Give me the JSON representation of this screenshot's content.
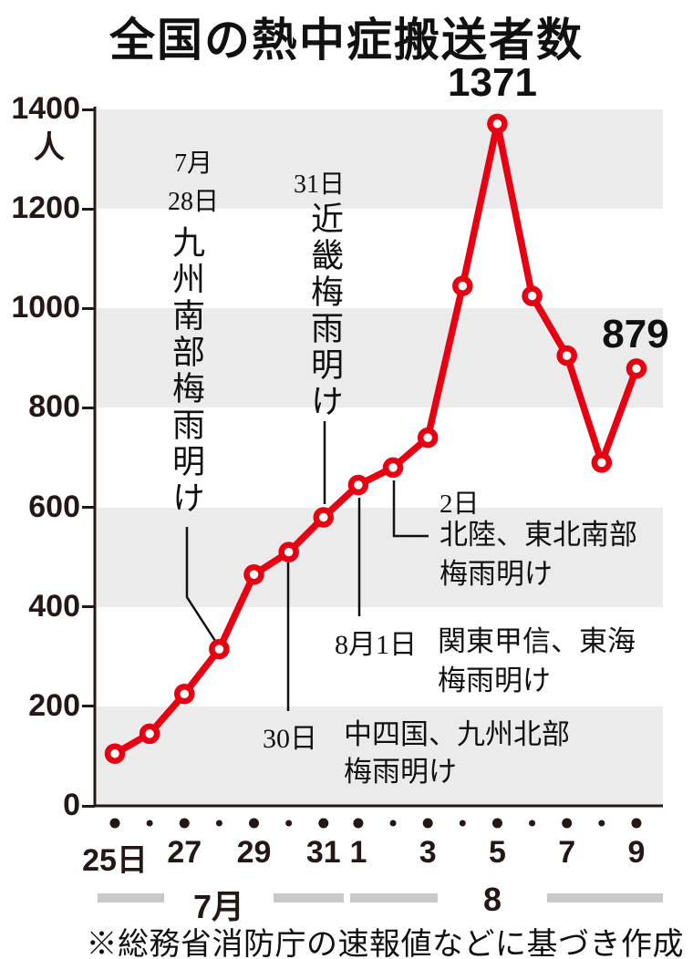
{
  "title": "全国の熱中症搬送者数",
  "source_note": "※総務省消防庁の速報値などに基づき作成",
  "chart_data": {
    "type": "line",
    "title": "全国の熱中症搬送者数",
    "unit": "人",
    "line_color": "#e60012",
    "band_color": "#ebebeb",
    "x": [
      "7/25",
      "7/26",
      "7/27",
      "7/28",
      "7/29",
      "7/30",
      "7/31",
      "8/1",
      "8/2",
      "8/3",
      "8/4",
      "8/5",
      "8/6",
      "8/7",
      "8/8",
      "8/9"
    ],
    "x_tick_labels": [
      "25日",
      "",
      "27",
      "",
      "29",
      "",
      "31",
      "1",
      "",
      "3",
      "",
      "5",
      "",
      "7",
      "",
      "9"
    ],
    "values": [
      105,
      145,
      225,
      315,
      465,
      510,
      580,
      645,
      680,
      740,
      1045,
      1371,
      1025,
      905,
      690,
      879
    ],
    "ylim": [
      0,
      1400
    ],
    "ytick_step": 200,
    "grid_bands": "alternating light-gray horizontal bands every 200",
    "legend": "none",
    "point_labels": [
      {
        "x": "8/5",
        "text": "1371"
      },
      {
        "x": "8/9",
        "text": "879"
      }
    ],
    "months": [
      {
        "label": "7月",
        "from_index": 0,
        "to_index": 6
      },
      {
        "label": "8",
        "from_index": 7,
        "to_index": 15
      }
    ]
  },
  "annotations": [
    {
      "date_lines": [
        "7月",
        "28日"
      ],
      "body": "九州南部梅雨明け"
    },
    {
      "date_lines": [
        "31日"
      ],
      "body": "近畿梅雨明け"
    },
    {
      "date_lines": [
        "2日"
      ],
      "body_lines": [
        "北陸、東北南部",
        "梅雨明け"
      ]
    },
    {
      "date_lines": [
        "8月1日"
      ],
      "body_lines": [
        "関東甲信、東海",
        "梅雨明け"
      ]
    },
    {
      "date_lines": [
        "30日"
      ],
      "body_lines": [
        "中四国、九州北部",
        "梅雨明け"
      ]
    }
  ]
}
